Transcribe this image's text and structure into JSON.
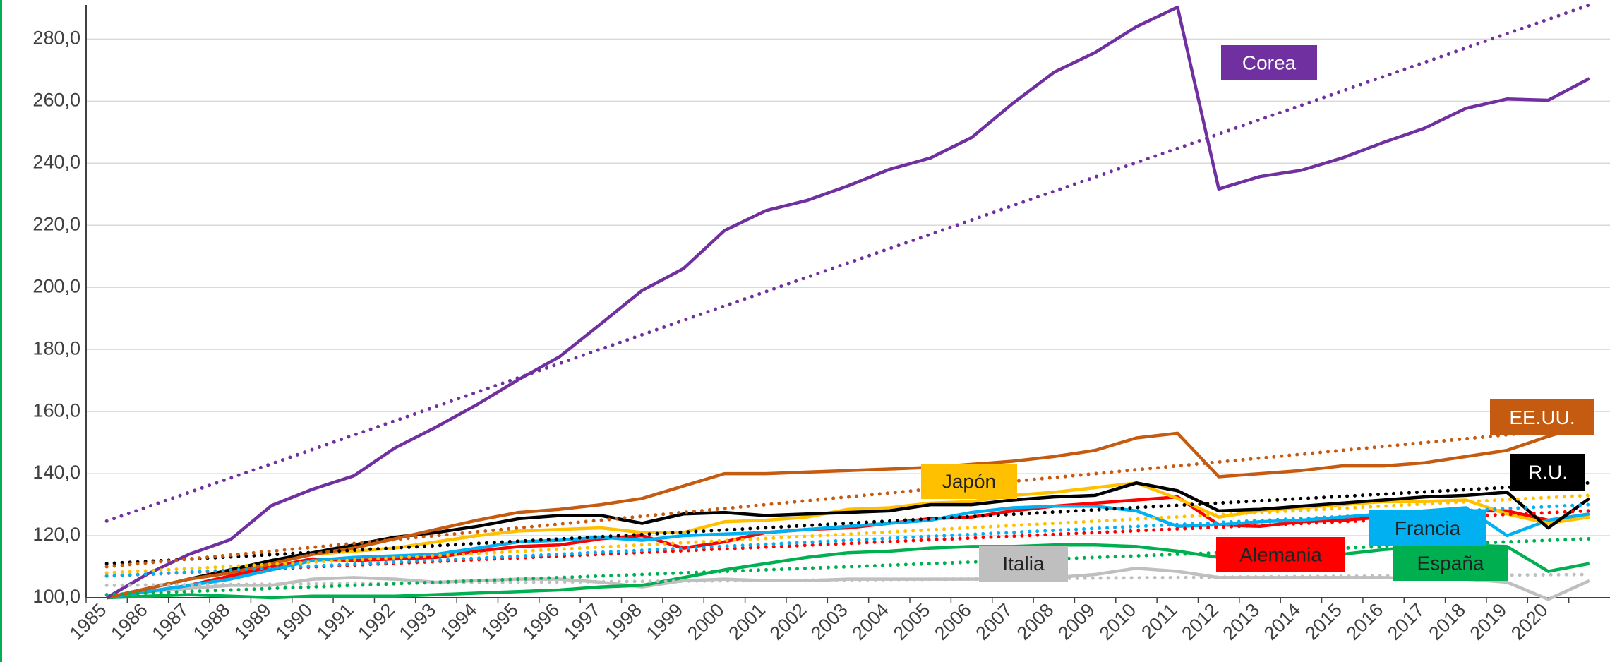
{
  "chart_data": {
    "type": "line",
    "categories": [
      "1985",
      "1986",
      "1987",
      "1988",
      "1989",
      "1990",
      "1991",
      "1992",
      "1993",
      "1994",
      "1995",
      "1996",
      "1997",
      "1998",
      "1999",
      "2000",
      "2001",
      "2002",
      "2003",
      "2004",
      "2005",
      "2006",
      "2007",
      "2008",
      "2009",
      "2010",
      "2011",
      "2012",
      "2013",
      "2014",
      "2015",
      "2016",
      "2017",
      "2018",
      "2019",
      "2020",
      null
    ],
    "ylim": [
      100,
      291
    ],
    "yticks": [
      {
        "value": 100,
        "label": "100,0"
      },
      {
        "value": 120,
        "label": "120,0"
      },
      {
        "value": 140,
        "label": "140,0"
      },
      {
        "value": 160,
        "label": "160,0"
      },
      {
        "value": 180,
        "label": "180,0"
      },
      {
        "value": 200,
        "label": "200,0"
      },
      {
        "value": 220,
        "label": "220,0"
      },
      {
        "value": 240,
        "label": "240,0"
      },
      {
        "value": 260,
        "label": "260,0"
      },
      {
        "value": 280,
        "label": "280,0"
      }
    ],
    "grid": true,
    "series": [
      {
        "name": "Corea",
        "color": "#7030a0",
        "trend": [
          124.7,
          291
        ],
        "values": [
          100,
          107.7,
          114,
          118.7,
          129.7,
          135,
          139.3,
          148.3,
          155,
          162.3,
          170.3,
          177.7,
          188.3,
          199,
          206,
          218.3,
          224.7,
          228,
          232.7,
          238,
          241.7,
          248.3,
          259.3,
          269.3,
          275.7,
          284,
          290.3,
          231.7,
          235.7,
          237.7,
          241.7,
          246.7,
          251.3,
          257.7,
          260.7,
          260.3,
          267.3
        ]
      },
      {
        "name": "EE.UU.",
        "color": "#c55a11",
        "trend": [
          110,
          155
        ],
        "values": [
          100,
          103,
          106,
          108,
          111,
          114,
          116,
          119,
          122,
          125,
          127.5,
          128.5,
          130,
          132,
          136,
          140,
          140,
          140.5,
          141,
          141.5,
          142,
          143,
          144,
          145.5,
          147.5,
          151.5,
          153,
          139,
          140,
          141,
          142.5,
          142.5,
          143.5,
          145.5,
          147.5,
          152,
          156
        ]
      },
      {
        "name": "R.U.",
        "color": "#000000",
        "trend": [
          111,
          137
        ],
        "values": [
          100,
          103,
          106,
          109,
          112,
          114.5,
          117,
          119.5,
          121,
          123,
          125.5,
          126.5,
          126.5,
          124,
          127,
          127.5,
          126.5,
          127,
          127.5,
          128,
          130,
          130,
          131.5,
          132.5,
          133,
          137,
          134.5,
          128,
          128.5,
          129.5,
          130.5,
          131.5,
          132.5,
          133,
          134,
          122.5,
          132
        ]
      },
      {
        "name": "Japón",
        "color": "#ffc000",
        "trend": [
          108,
          133
        ],
        "values": [
          100,
          103,
          106,
          109,
          112,
          114,
          115,
          116,
          118,
          120,
          121.5,
          122,
          122.5,
          121,
          121,
          124.5,
          125,
          126,
          128.5,
          129,
          130.5,
          131,
          133,
          134,
          135.5,
          137,
          132,
          126,
          128,
          129,
          130,
          131,
          131,
          131.5,
          127,
          124,
          126
        ]
      },
      {
        "name": "Francia",
        "color": "#00b0f0",
        "trend": [
          107,
          130
        ],
        "values": [
          100,
          102,
          104,
          106,
          109,
          112,
          113,
          113.5,
          114,
          116,
          118,
          118.5,
          119.5,
          118.5,
          120,
          120.5,
          121,
          122,
          123,
          124,
          125,
          127.5,
          129,
          129.5,
          129.5,
          128,
          123,
          123.5,
          124.5,
          125,
          126,
          127,
          128,
          129,
          120,
          125,
          127
        ]
      },
      {
        "name": "Alemania",
        "color": "#ff0000",
        "trend": [
          107,
          128
        ],
        "values": [
          100,
          102,
          104,
          107,
          110,
          112.5,
          112,
          112.5,
          113,
          115,
          116.5,
          117,
          119,
          120,
          116,
          118,
          121,
          122,
          122.5,
          124,
          125.5,
          126,
          128,
          129.5,
          130.5,
          131.5,
          132.5,
          123.5,
          123,
          124.5,
          125,
          126,
          127,
          128,
          128,
          125,
          127
        ]
      },
      {
        "name": "España",
        "color": "#00b050",
        "trend": [
          101,
          119
        ],
        "values": [
          100,
          100.5,
          101,
          100.5,
          100,
          100.5,
          100.5,
          100.5,
          101,
          101.5,
          102,
          102.5,
          103.5,
          104,
          106.5,
          109,
          111,
          113,
          114.5,
          115,
          116,
          116.5,
          116.5,
          117,
          117,
          116.5,
          115,
          113,
          113,
          113,
          114,
          115.5,
          116.5,
          117,
          116.5,
          108.5,
          111
        ]
      },
      {
        "name": "Italia",
        "color": "#bfbfbf",
        "trend": [
          104,
          107.5
        ],
        "values": [
          100,
          102,
          103,
          104,
          104,
          106,
          106.5,
          106,
          105,
          105.5,
          106,
          106,
          105,
          103.5,
          105.5,
          106,
          105.5,
          105.5,
          106,
          106,
          106,
          106,
          106,
          106.5,
          107.5,
          109.5,
          108.5,
          106.5,
          106.5,
          106.5,
          106.5,
          106.5,
          106,
          106,
          105,
          99.5,
          105.5
        ]
      }
    ]
  }
}
